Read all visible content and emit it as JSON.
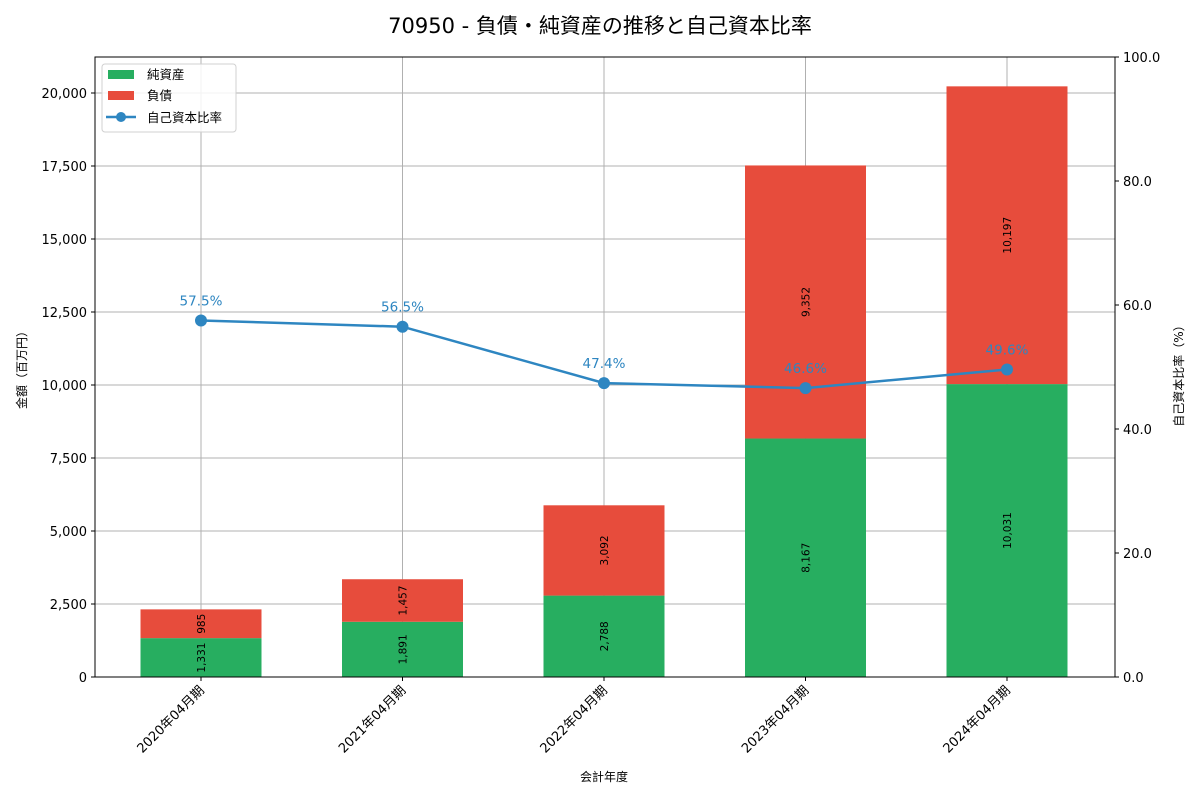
{
  "title": "70950 - 負債・純資産の推移と自己資本比率",
  "colors": {
    "net_assets": "#27ae60",
    "liabilities": "#e74c3c",
    "ratio": "#2e86c1",
    "grid": "#b0b0b0"
  },
  "chart_data": {
    "type": "bar",
    "stacked": true,
    "title": "70950 - 負債・純資産の推移と自己資本比率",
    "xlabel": "会計年度",
    "ylabel": "金額（百万円）",
    "y2label": "自己資本比率（%）",
    "categories": [
      "2020年04月期",
      "2021年04月期",
      "2022年04月期",
      "2023年04月期",
      "2024年04月期"
    ],
    "series": [
      {
        "name": "純資産",
        "type": "bar",
        "axis": "left",
        "values": [
          1331,
          1891,
          2788,
          8167,
          10031
        ],
        "labels": [
          "1,331",
          "1,891",
          "2,788",
          "8,167",
          "10,031"
        ]
      },
      {
        "name": "負債",
        "type": "bar",
        "axis": "left",
        "values": [
          985,
          1457,
          3092,
          9352,
          10197
        ],
        "labels": [
          "985",
          "1,457",
          "3,092",
          "9,352",
          "10,197"
        ]
      },
      {
        "name": "自己資本比率",
        "type": "line",
        "axis": "right",
        "values": [
          57.5,
          56.5,
          47.4,
          46.6,
          49.6
        ],
        "labels": [
          "57.5%",
          "56.5%",
          "47.4%",
          "46.6%",
          "49.6%"
        ]
      }
    ],
    "ylim": [
      0,
      21233
    ],
    "y2lim": [
      0,
      100
    ],
    "yticks": [
      0,
      2500,
      5000,
      7500,
      10000,
      12500,
      15000,
      17500,
      20000
    ],
    "ytick_labels": [
      "0",
      "2,500",
      "5,000",
      "7,500",
      "10,000",
      "12,500",
      "15,000",
      "17,500",
      "20,000"
    ],
    "y2ticks": [
      0,
      20,
      40,
      60,
      80,
      100
    ],
    "y2tick_labels": [
      "0.0",
      "20.0",
      "40.0",
      "60.0",
      "80.0",
      "100.0"
    ],
    "grid": true,
    "legend_position": "upper left",
    "legend": [
      "純資産",
      "負債",
      "自己資本比率"
    ]
  }
}
